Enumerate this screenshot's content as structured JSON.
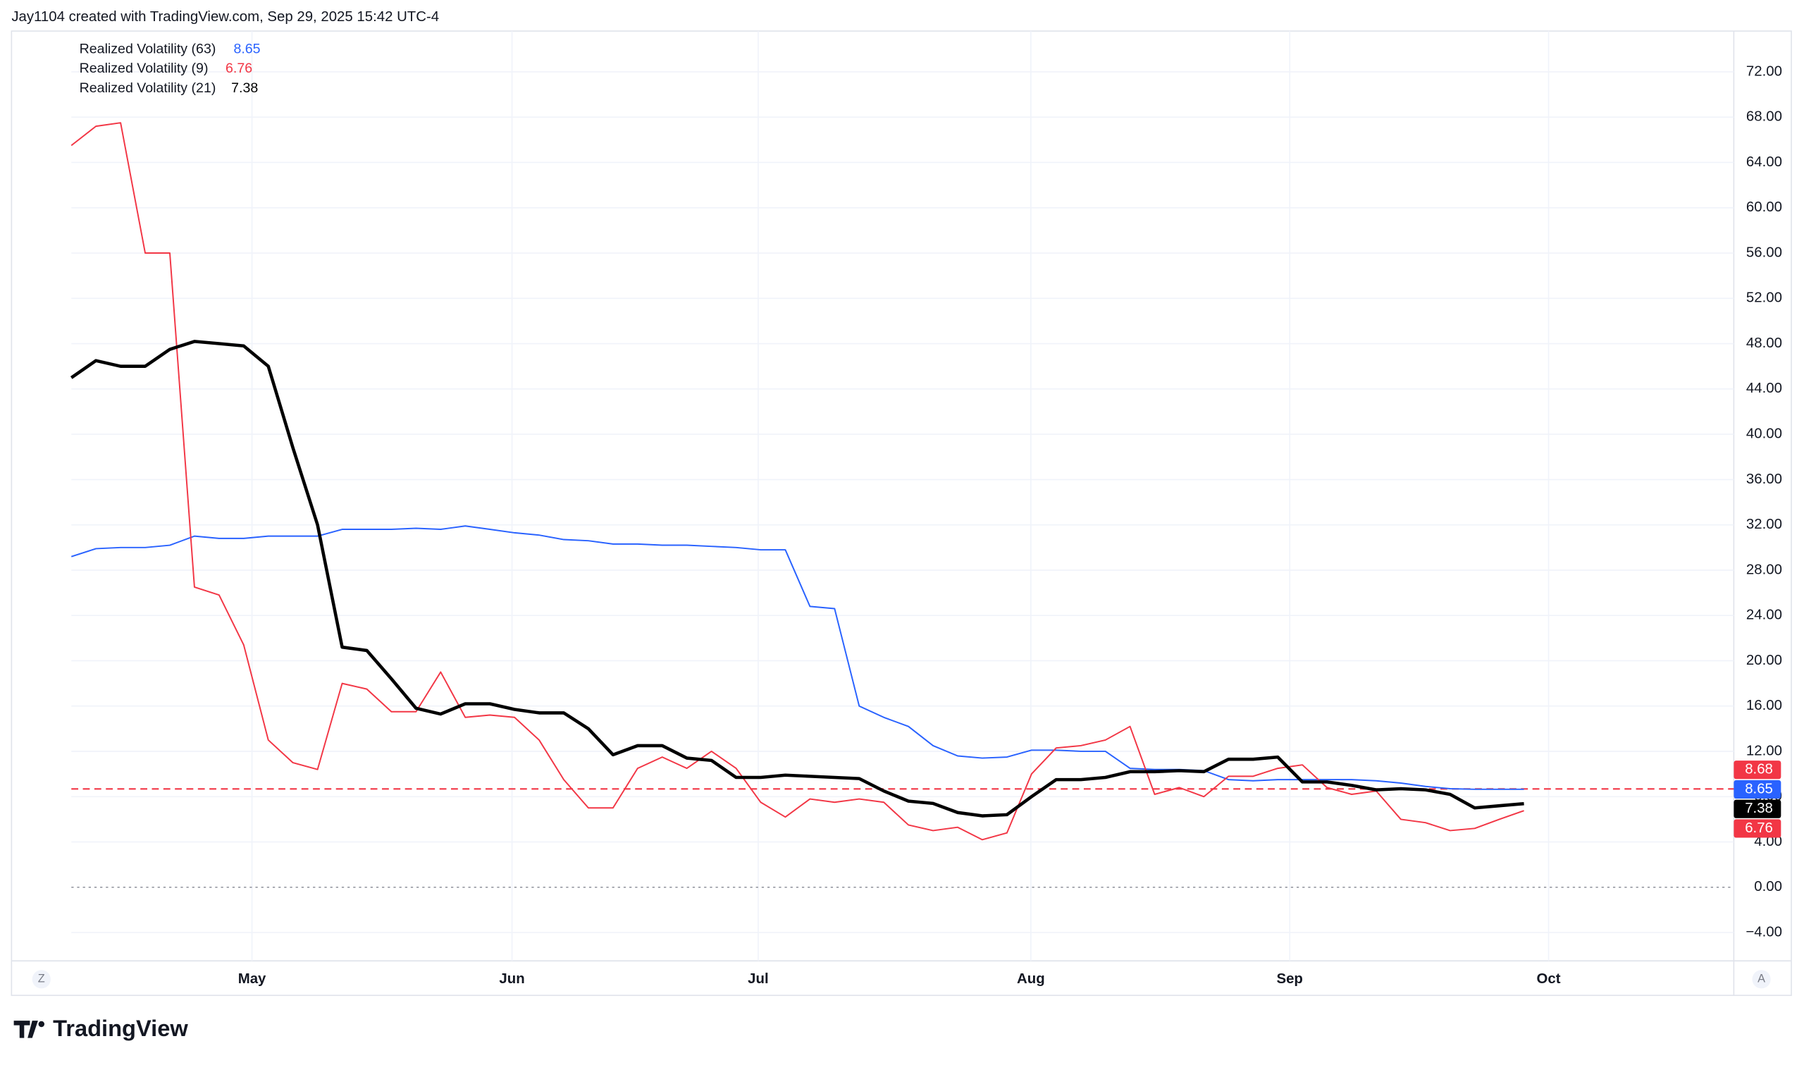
{
  "header": "Jay1104 created with TradingView.com, Sep 29, 2025 15:42 UTC-4",
  "brand": "TradingView",
  "chart_data": {
    "type": "line",
    "xticks": [
      "May",
      "Jun",
      "Jul",
      "Aug",
      "Sep",
      "Oct"
    ],
    "ylim": [
      -6.5,
      75.5
    ],
    "yticks": [
      {
        "value": -4,
        "label": "−4.00"
      },
      {
        "value": 0,
        "label": "0.00"
      },
      {
        "value": 4,
        "label": "4.00"
      },
      {
        "value": 8,
        "label": "8.00"
      },
      {
        "value": 12,
        "label": "12.00"
      },
      {
        "value": 16,
        "label": "16.00"
      },
      {
        "value": 20,
        "label": "20.00"
      },
      {
        "value": 24,
        "label": "24.00"
      },
      {
        "value": 28,
        "label": "28.00"
      },
      {
        "value": 32,
        "label": "32.00"
      },
      {
        "value": 36,
        "label": "36.00"
      },
      {
        "value": 40,
        "label": "40.00"
      },
      {
        "value": 44,
        "label": "44.00"
      },
      {
        "value": 48,
        "label": "48.00"
      },
      {
        "value": 52,
        "label": "52.00"
      },
      {
        "value": 56,
        "label": "56.00"
      },
      {
        "value": 60,
        "label": "60.00"
      },
      {
        "value": 64,
        "label": "64.00"
      },
      {
        "value": 68,
        "label": "68.00"
      },
      {
        "value": 72,
        "label": "72.00"
      }
    ],
    "grid": true,
    "reference_line": {
      "value": 8.68,
      "color": "#f23645"
    },
    "series": [
      {
        "name": "Realized Volatility (63)",
        "color": "#2962ff",
        "width": 1.2,
        "values": [
          29.2,
          29.9,
          30,
          30,
          30.2,
          31,
          30.8,
          30.8,
          31,
          31,
          31,
          31.6,
          31.6,
          31.6,
          31.7,
          31.6,
          31.9,
          31.6,
          31.3,
          31.1,
          30.7,
          30.6,
          30.3,
          30.3,
          30.2,
          30.2,
          30.1,
          30,
          29.8,
          29.8,
          24.8,
          24.6,
          16,
          15,
          14.2,
          12.5,
          11.6,
          11.4,
          11.5,
          12.1,
          12.1,
          12,
          12,
          10.5,
          10.4,
          10.4,
          10.3,
          9.5,
          9.4,
          9.5,
          9.5,
          9.5,
          9.5,
          9.4,
          9.2,
          8.9,
          8.7,
          8.65,
          8.65,
          8.65
        ]
      },
      {
        "name": "Realized Volatility (9)",
        "color": "#f23645",
        "width": 1.2,
        "values": [
          65.5,
          67.2,
          67.5,
          56,
          56,
          26.5,
          25.8,
          21.4,
          13,
          11,
          10.4,
          18,
          17.5,
          15.5,
          15.5,
          19,
          15,
          15.2,
          15,
          13,
          9.5,
          7,
          7,
          10.5,
          11.5,
          10.5,
          12,
          10.5,
          7.5,
          6.2,
          7.8,
          7.5,
          7.8,
          7.5,
          5.5,
          5,
          5.3,
          4.2,
          4.8,
          10,
          12.3,
          12.5,
          13,
          14.2,
          8.2,
          8.8,
          8,
          9.8,
          9.8,
          10.5,
          10.8,
          8.8,
          8.2,
          8.5,
          6,
          5.7,
          5,
          5.2,
          6,
          6.76
        ]
      },
      {
        "name": "Realized Volatility (21)",
        "color": "#000000",
        "width": 2.8,
        "values": [
          45,
          46.5,
          46,
          46,
          47.5,
          48.2,
          48,
          47.8,
          46,
          38.8,
          32,
          21.2,
          20.9,
          18.4,
          15.8,
          15.3,
          16.2,
          16.2,
          15.7,
          15.4,
          15.4,
          14,
          11.7,
          12.5,
          12.5,
          11.4,
          11.2,
          9.7,
          9.7,
          9.9,
          9.8,
          9.7,
          9.6,
          8.5,
          7.6,
          7.4,
          6.6,
          6.3,
          6.4,
          8,
          9.5,
          9.5,
          9.7,
          10.2,
          10.2,
          10.3,
          10.2,
          11.3,
          11.3,
          11.5,
          9.3,
          9.3,
          9,
          8.6,
          8.7,
          8.6,
          8.2,
          7,
          7.2,
          7.38
        ]
      }
    ]
  }
}
